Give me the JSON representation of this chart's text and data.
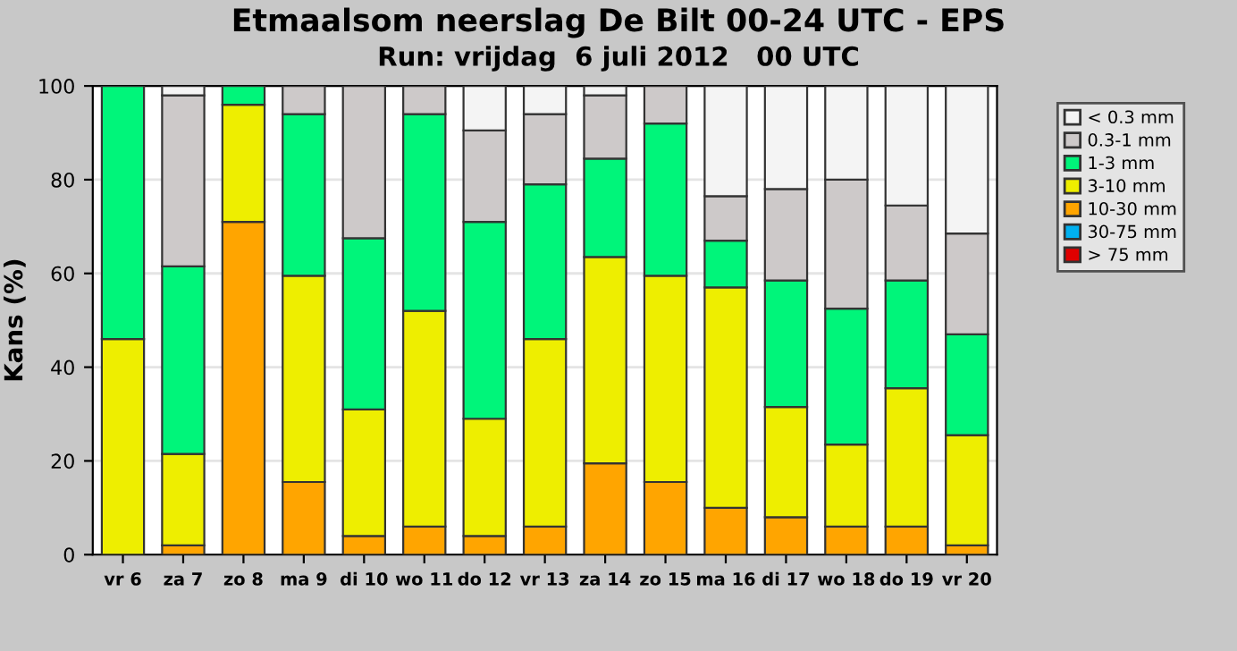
{
  "chart_data": {
    "type": "bar",
    "stacked": true,
    "title": "Etmaalsom neerslag De Bilt 00-24 UTC - EPS",
    "subtitle": "Run: vrijdag  6 juli 2012   00 UTC",
    "ylabel": "Kans (%)",
    "categories": [
      "vr 6",
      "za 7",
      "zo 8",
      "ma 9",
      "di 10",
      "wo 11",
      "do 12",
      "vr 13",
      "za 14",
      "zo 15",
      "ma 16",
      "di 17",
      "wo 18",
      "do 19",
      "vr 20"
    ],
    "series": [
      {
        "name": "> 75 mm",
        "color": "#e00000",
        "values": [
          0,
          0,
          0,
          0,
          0,
          0,
          0,
          0,
          0,
          0,
          0,
          0,
          0,
          0,
          0
        ]
      },
      {
        "name": "30-75 mm",
        "color": "#00b0f0",
        "values": [
          0,
          0,
          0,
          0,
          0,
          0,
          0,
          0,
          0,
          0,
          0,
          0,
          0,
          0,
          0
        ]
      },
      {
        "name": "10-30 mm",
        "color": "#ffa500",
        "values": [
          0,
          2,
          71,
          15.5,
          4,
          6,
          4,
          6,
          19.5,
          15.5,
          10,
          8,
          6,
          6,
          2
        ]
      },
      {
        "name": "3-10 mm",
        "color": "#eeee00",
        "values": [
          46,
          19.5,
          25,
          44,
          27,
          46,
          25,
          40,
          44,
          44,
          47,
          23.5,
          17.5,
          29.5,
          23.5
        ]
      },
      {
        "name": "1-3 mm",
        "color": "#00f57a",
        "values": [
          54,
          40,
          4,
          34.5,
          36.5,
          42,
          42,
          33,
          21,
          32.5,
          10,
          27,
          29,
          23,
          21.5
        ]
      },
      {
        "name": "0.3-1 mm",
        "color": "#cdc9c9",
        "values": [
          0,
          36.5,
          0,
          6,
          32.5,
          6,
          19.5,
          15,
          13.5,
          8,
          9.5,
          19.5,
          27.5,
          16,
          21.5
        ]
      },
      {
        "name": "< 0.3 mm",
        "color": "#f4f4f4",
        "values": [
          0,
          2,
          0,
          0,
          0,
          0,
          9.5,
          6,
          2,
          0,
          23.5,
          22,
          20,
          25.5,
          31.5
        ]
      }
    ],
    "ylim": [
      0,
      100
    ],
    "yticks": [
      0,
      20,
      40,
      60,
      80,
      100
    ],
    "grid": "y",
    "legend": "top right"
  }
}
